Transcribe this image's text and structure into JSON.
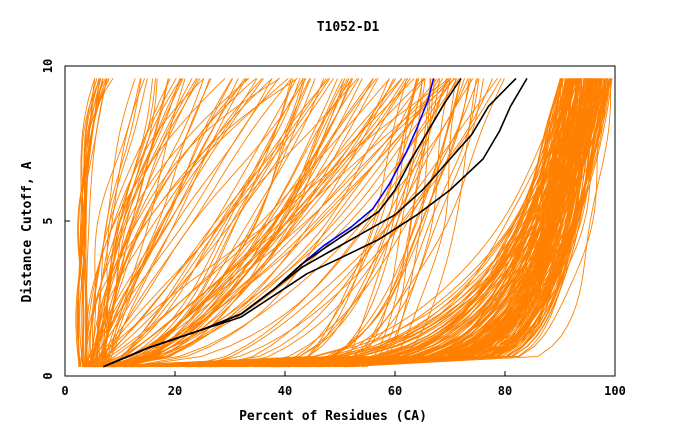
{
  "chart_data": {
    "type": "line",
    "title": "T1052-D1",
    "xlabel": "Percent of Residues (CA)",
    "ylabel": "Distance Cutoff, A",
    "xlim": [
      0,
      100
    ],
    "ylim": [
      0,
      10
    ],
    "x_ticks": [
      "0",
      "20",
      "40",
      "60",
      "80",
      "100"
    ],
    "y_ticks": [
      "0",
      "5",
      "10"
    ],
    "grid": false,
    "legend": "none",
    "colors": {
      "models": "#ff8000",
      "highlight_blue": "#0000ff",
      "highlight_black": "#000000",
      "frame": "#000000"
    },
    "series": [
      {
        "color": "#0000ff",
        "points": [
          [
            7,
            0.3
          ],
          [
            15,
            0.9
          ],
          [
            25,
            1.5
          ],
          [
            32,
            2.0
          ],
          [
            38,
            2.8
          ],
          [
            43,
            3.6
          ],
          [
            47,
            4.2
          ],
          [
            52,
            4.8
          ],
          [
            56,
            5.4
          ],
          [
            59,
            6.2
          ],
          [
            62,
            7.2
          ],
          [
            64,
            8.0
          ],
          [
            66,
            8.9
          ],
          [
            67,
            9.6
          ]
        ]
      },
      {
        "color": "#000000",
        "points": [
          [
            7,
            0.3
          ],
          [
            15,
            0.9
          ],
          [
            25,
            1.5
          ],
          [
            32,
            2.0
          ],
          [
            38,
            2.8
          ],
          [
            43,
            3.6
          ],
          [
            47,
            4.1
          ],
          [
            52,
            4.7
          ],
          [
            57,
            5.3
          ],
          [
            60,
            6.0
          ],
          [
            63,
            7.0
          ],
          [
            66,
            7.9
          ],
          [
            69,
            8.8
          ],
          [
            72,
            9.6
          ]
        ]
      },
      {
        "color": "#000000",
        "points": [
          [
            7,
            0.3
          ],
          [
            15,
            0.9
          ],
          [
            25,
            1.5
          ],
          [
            32,
            2.0
          ],
          [
            38,
            2.8
          ],
          [
            43,
            3.5
          ],
          [
            48,
            4.0
          ],
          [
            54,
            4.6
          ],
          [
            60,
            5.2
          ],
          [
            65,
            6.0
          ],
          [
            70,
            7.0
          ],
          [
            74,
            7.8
          ],
          [
            77,
            8.7
          ],
          [
            82,
            9.6
          ]
        ]
      },
      {
        "color": "#000000",
        "points": [
          [
            7,
            0.3
          ],
          [
            15,
            0.9
          ],
          [
            25,
            1.5
          ],
          [
            32,
            1.9
          ],
          [
            38,
            2.6
          ],
          [
            44,
            3.3
          ],
          [
            50,
            3.8
          ],
          [
            57,
            4.4
          ],
          [
            64,
            5.2
          ],
          [
            70,
            6.0
          ],
          [
            76,
            7.0
          ],
          [
            79,
            7.9
          ],
          [
            81,
            8.7
          ],
          [
            84,
            9.6
          ]
        ]
      }
    ],
    "model_families": [
      {
        "count": 18,
        "x_start": [
          2.5,
          4
        ],
        "x_end": [
          5,
          9
        ],
        "shape_power": [
          0.12,
          0.3
        ]
      },
      {
        "count": 45,
        "x_start": [
          3,
          8
        ],
        "x_end": [
          12,
          45
        ],
        "shape_power": [
          0.4,
          1.1
        ]
      },
      {
        "count": 55,
        "x_start": [
          4,
          12
        ],
        "x_end": [
          40,
          75
        ],
        "shape_power": [
          0.9,
          2.2
        ]
      },
      {
        "count": 30,
        "x_start": [
          20,
          55
        ],
        "x_end": [
          62,
          80
        ],
        "shape_power": [
          1.5,
          3.5
        ]
      },
      {
        "count": 190,
        "x_start": [
          3,
          52
        ],
        "x_end": [
          90,
          99.5
        ],
        "shape_power": [
          4,
          11
        ]
      }
    ]
  }
}
